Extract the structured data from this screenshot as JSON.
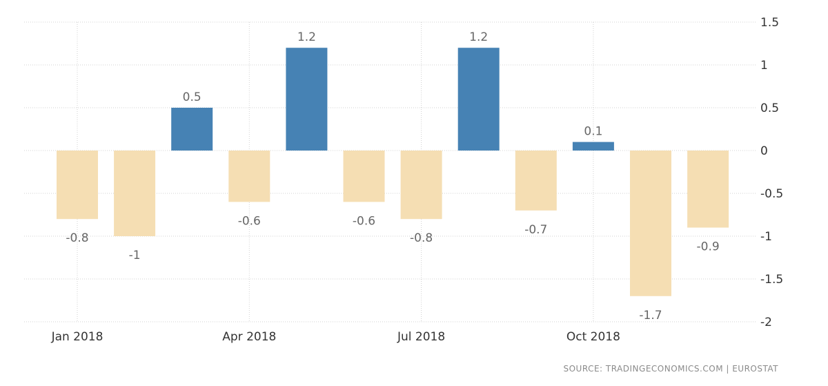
{
  "chart_data": {
    "type": "bar",
    "categories": [
      "Jan 2018",
      "Feb 2018",
      "Mar 2018",
      "Apr 2018",
      "May 2018",
      "Jun 2018",
      "Jul 2018",
      "Aug 2018",
      "Sep 2018",
      "Oct 2018",
      "Nov 2018",
      "Dec 2018"
    ],
    "values": [
      -0.8,
      -1,
      0.5,
      -0.6,
      1.2,
      -0.6,
      -0.8,
      1.2,
      -0.7,
      0.1,
      -1.7,
      -0.9
    ],
    "data_labels": [
      "-0.8",
      "-1",
      "0.5",
      "-0.6",
      "1.2",
      "-0.6",
      "-0.8",
      "1.2",
      "-0.7",
      "0.1",
      "-1.7",
      "-0.9"
    ],
    "x_tick_labels": [
      {
        "category": "Jan 2018",
        "label": "Jan 2018"
      },
      {
        "category": "Apr 2018",
        "label": "Apr 2018"
      },
      {
        "category": "Jul 2018",
        "label": "Jul 2018"
      },
      {
        "category": "Oct 2018",
        "label": "Oct 2018"
      }
    ],
    "y_ticks": [
      1.5,
      1,
      0.5,
      0,
      -0.5,
      -1,
      -1.5,
      -2
    ],
    "y_tick_labels": [
      "1.5",
      "1",
      "0.5",
      "0",
      "-0.5",
      "-1",
      "-1.5",
      "-2"
    ],
    "ylim": [
      -2,
      1.5
    ],
    "y_axis_side": "right",
    "grid": true,
    "title": "",
    "xlabel": "",
    "ylabel": "",
    "colors": {
      "positive": "#4682b4",
      "negative": "#f5deb3",
      "grid": "#d0d0d0",
      "axis_text": "#333333",
      "data_label": "#666666"
    }
  },
  "footer": {
    "source": "SOURCE:  TRADINGECONOMICS.COM  |  EUROSTAT"
  }
}
